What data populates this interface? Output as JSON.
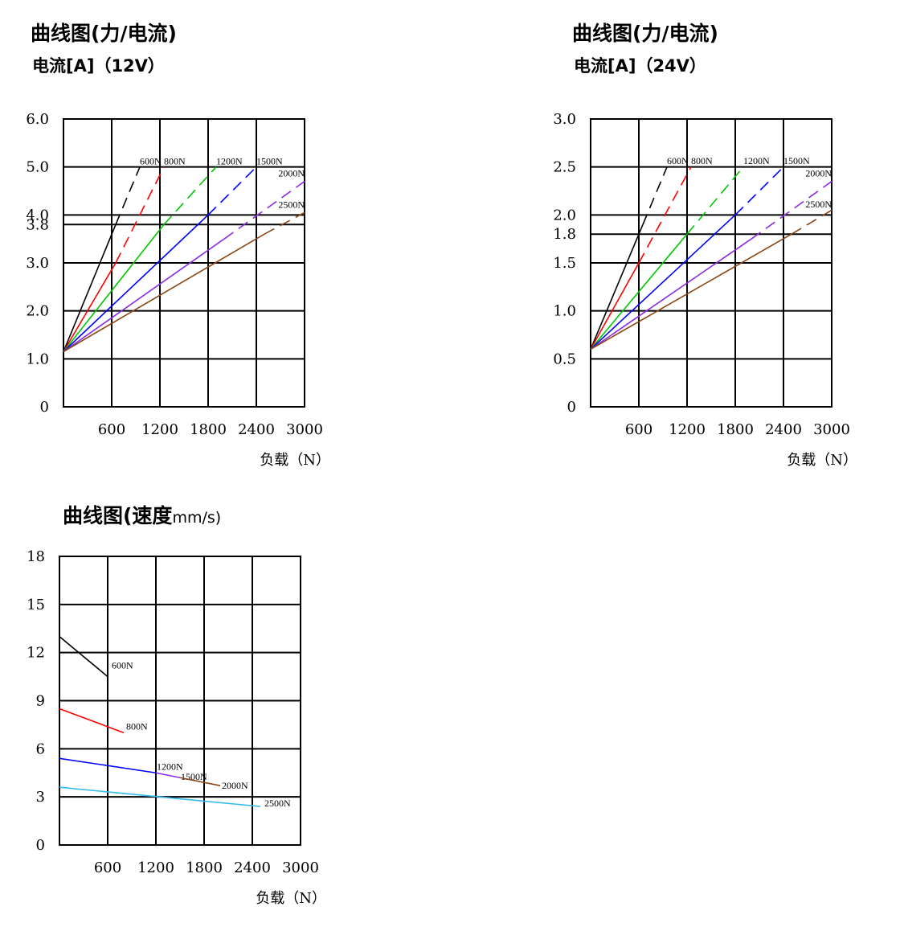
{
  "charts": [
    {
      "id": "current-12v",
      "title": "曲线图(力/电流)",
      "subtitle": "电流[A]（12V）",
      "subtitle_unit": "",
      "xlabel": "负载（N）",
      "xticks": [
        "600",
        "1200",
        "1800",
        "2400",
        "3000"
      ],
      "yticks": [
        "0",
        "1.0",
        "2.0",
        "3.0",
        "3.8",
        "4.0",
        "5.0",
        "6.0"
      ]
    },
    {
      "id": "current-24v",
      "title": "曲线图(力/电流)",
      "subtitle": "电流[A]（24V）",
      "subtitle_unit": "",
      "xlabel": "负载（N）",
      "xticks": [
        "600",
        "1200",
        "1800",
        "2400",
        "3000"
      ],
      "yticks": [
        "0",
        "0.5",
        "1.0",
        "1.5",
        "1.8",
        "2.0",
        "2.5",
        "3.0"
      ]
    },
    {
      "id": "speed",
      "title": "曲线图(速度",
      "subtitle_unit": "mm/s)",
      "xlabel": "负载（N）",
      "xticks": [
        "600",
        "1200",
        "1800",
        "2400",
        "3000"
      ],
      "yticks": [
        "0",
        "3",
        "6",
        "9",
        "12",
        "15",
        "18"
      ]
    }
  ],
  "chart_data": [
    {
      "type": "line",
      "xlim": [
        0,
        3000
      ],
      "ylim": [
        0,
        6
      ],
      "grid": true,
      "series": [
        {
          "name": "600N",
          "color": "#000000",
          "solid": [
            [
              0,
              1.15
            ],
            [
              650,
              3.8
            ]
          ],
          "dashed": [
            [
              650,
              3.8
            ],
            [
              950,
              5.0
            ]
          ]
        },
        {
          "name": "800N",
          "color": "#ff0000",
          "solid": [
            [
              0,
              1.15
            ],
            [
              650,
              3.0
            ]
          ],
          "dashed": [
            [
              650,
              3.0
            ],
            [
              1250,
              5.0
            ]
          ]
        },
        {
          "name": "1200N",
          "color": "#00c800",
          "solid": [
            [
              0,
              1.15
            ],
            [
              1250,
              3.8
            ]
          ],
          "dashed": [
            [
              1250,
              3.8
            ],
            [
              1900,
              5.0
            ]
          ]
        },
        {
          "name": "1500N",
          "color": "#0000ff",
          "solid": [
            [
              0,
              1.15
            ],
            [
              1800,
              4.0
            ]
          ],
          "dashed": [
            [
              1800,
              4.0
            ],
            [
              2400,
              5.0
            ]
          ]
        },
        {
          "name": "2000N",
          "color": "#8a2be2",
          "solid": [
            [
              0,
              1.15
            ],
            [
              2000,
              3.5
            ]
          ],
          "dashed": [
            [
              2000,
              3.5
            ],
            [
              3000,
              4.7
            ]
          ]
        },
        {
          "name": "2500N",
          "color": "#8b4513",
          "solid": [
            [
              0,
              1.15
            ],
            [
              2500,
              3.6
            ]
          ],
          "dashed": [
            [
              2500,
              3.6
            ],
            [
              3000,
              4.05
            ]
          ]
        }
      ]
    },
    {
      "type": "line",
      "xlim": [
        0,
        3000
      ],
      "ylim": [
        0,
        3
      ],
      "grid": true,
      "series": [
        {
          "name": "600N",
          "color": "#000000",
          "solid": [
            [
              0,
              0.6
            ],
            [
              650,
              1.9
            ]
          ],
          "dashed": [
            [
              650,
              1.9
            ],
            [
              950,
              2.5
            ]
          ]
        },
        {
          "name": "800N",
          "color": "#ff0000",
          "solid": [
            [
              0,
              0.6
            ],
            [
              600,
              1.5
            ]
          ],
          "dashed": [
            [
              600,
              1.5
            ],
            [
              1250,
              2.5
            ]
          ]
        },
        {
          "name": "1200N",
          "color": "#00c800",
          "solid": [
            [
              0,
              0.6
            ],
            [
              1200,
              1.8
            ]
          ],
          "dashed": [
            [
              1200,
              1.8
            ],
            [
              1900,
              2.5
            ]
          ]
        },
        {
          "name": "1500N",
          "color": "#0000ff",
          "solid": [
            [
              0,
              0.6
            ],
            [
              1800,
              2.0
            ]
          ],
          "dashed": [
            [
              1800,
              2.0
            ],
            [
              2400,
              2.5
            ]
          ]
        },
        {
          "name": "2000N",
          "color": "#8a2be2",
          "solid": [
            [
              0,
              0.6
            ],
            [
              2000,
              1.75
            ]
          ],
          "dashed": [
            [
              2000,
              1.75
            ],
            [
              3000,
              2.35
            ]
          ]
        },
        {
          "name": "2500N",
          "color": "#8b4513",
          "solid": [
            [
              0,
              0.6
            ],
            [
              2500,
              1.8
            ]
          ],
          "dashed": [
            [
              2500,
              1.8
            ],
            [
              3000,
              2.05
            ]
          ]
        }
      ]
    },
    {
      "type": "line",
      "xlim": [
        0,
        3000
      ],
      "ylim": [
        0,
        18
      ],
      "grid": true,
      "series": [
        {
          "name": "600N",
          "color": "#000000",
          "points": [
            [
              0,
              13.0
            ],
            [
              600,
              10.5
            ]
          ]
        },
        {
          "name": "800N",
          "color": "#ff0000",
          "points": [
            [
              0,
              8.5
            ],
            [
              800,
              7.0
            ]
          ]
        },
        {
          "name": "1200N",
          "color": "#0000ff",
          "points": [
            [
              0,
              5.4
            ],
            [
              1200,
              4.5
            ]
          ]
        },
        {
          "name": "1500N",
          "color": "#8a2be2",
          "points": [
            [
              1200,
              4.5
            ],
            [
              1500,
              4.2
            ]
          ]
        },
        {
          "name": "2000N",
          "color": "#8b4513",
          "points": [
            [
              1500,
              4.2
            ],
            [
              2000,
              3.7
            ]
          ]
        },
        {
          "name": "2500N",
          "color": "#33bbee",
          "points": [
            [
              0,
              3.6
            ],
            [
              2500,
              2.4
            ]
          ]
        }
      ]
    }
  ]
}
